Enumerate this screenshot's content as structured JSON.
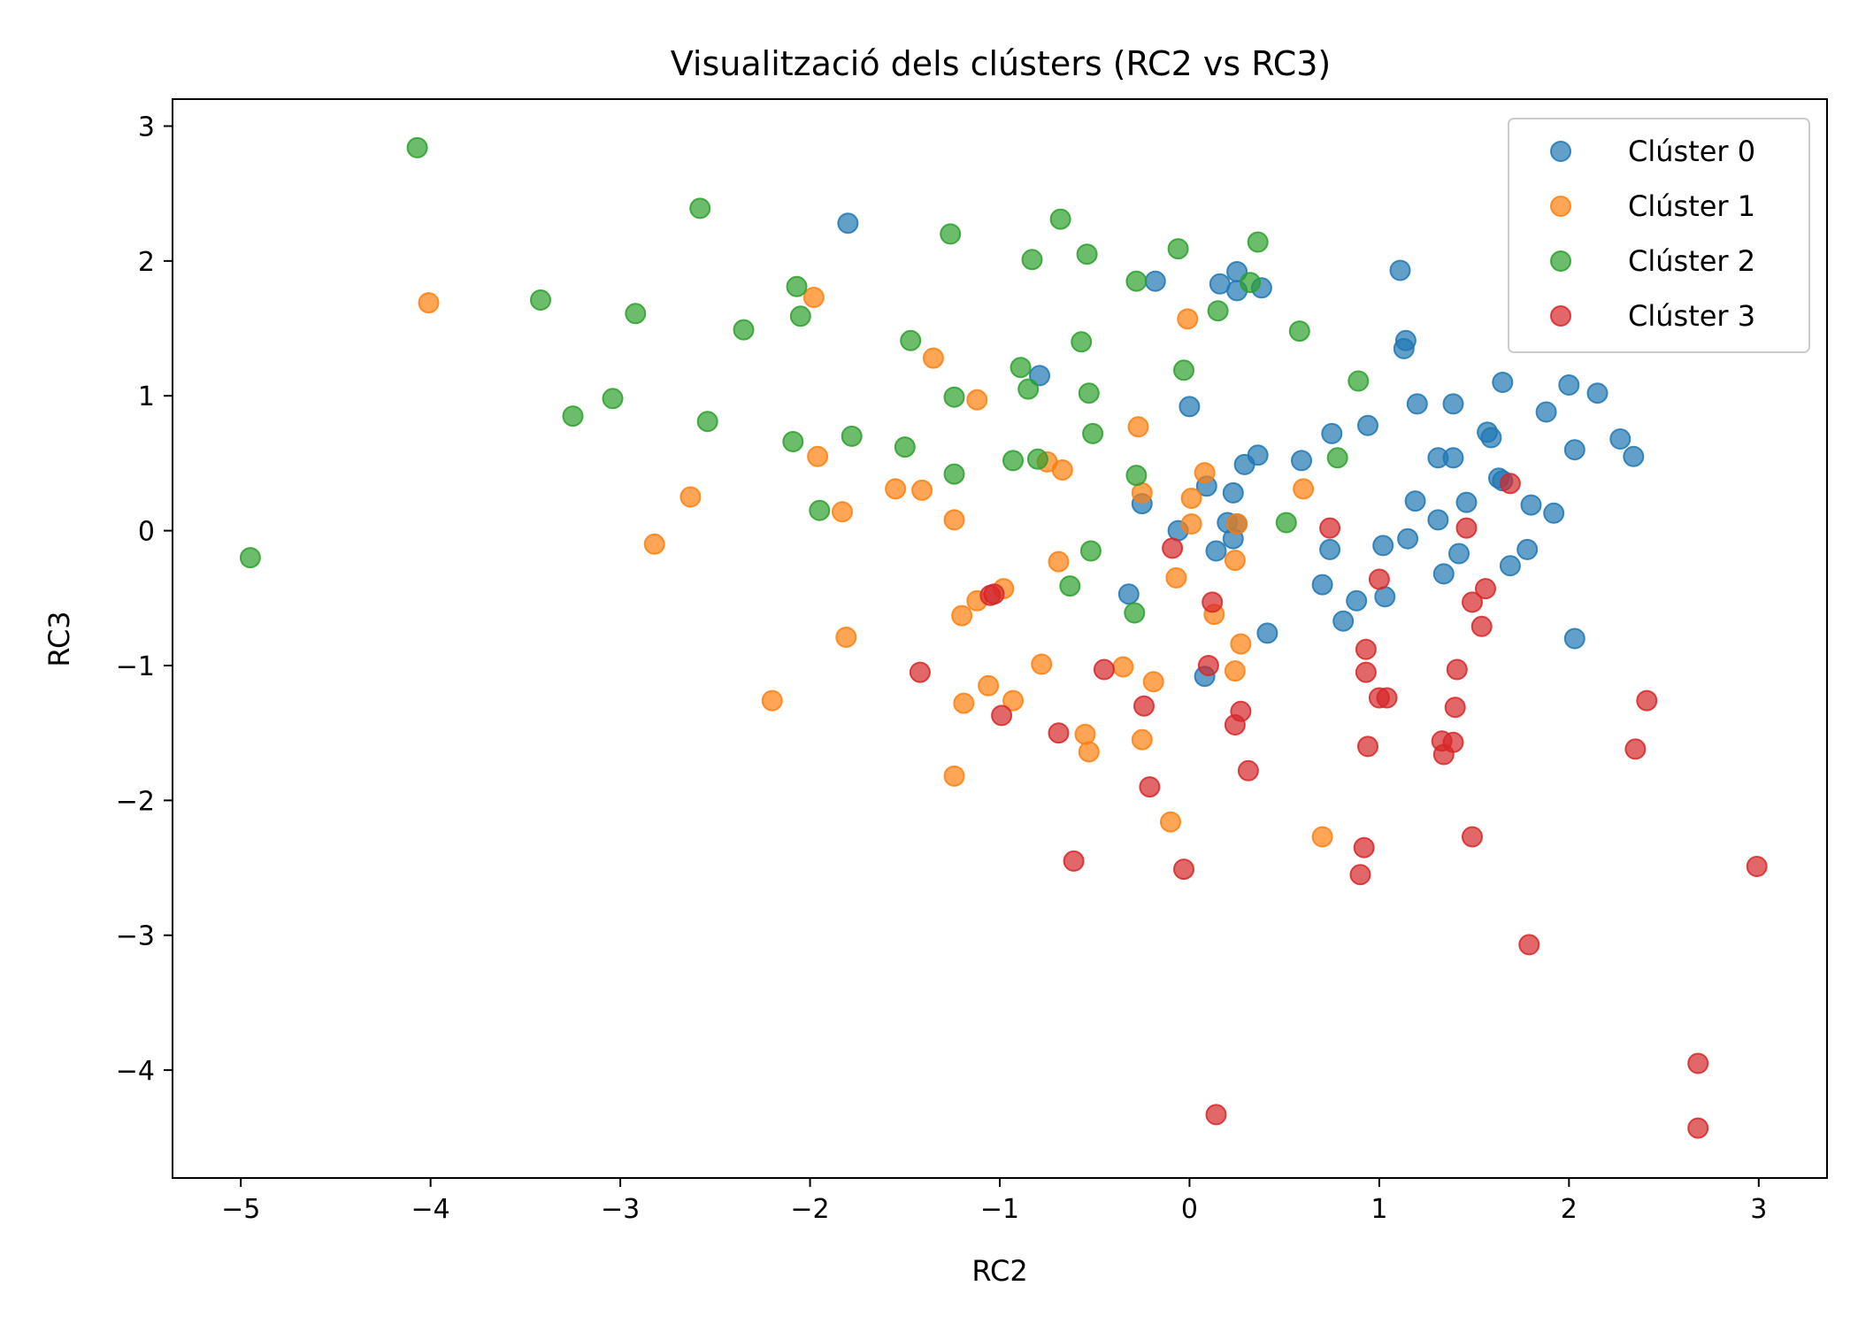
{
  "chart_data": {
    "type": "scatter",
    "title": "Visualització dels clústers (RC2 vs RC3)",
    "xlabel": "RC2",
    "ylabel": "RC3",
    "xlim": [
      -5.36,
      3.36
    ],
    "ylim": [
      -4.8,
      3.2
    ],
    "xticks": [
      -5,
      -4,
      -3,
      -2,
      -1,
      0,
      1,
      2,
      3
    ],
    "xtick_labels": [
      "−5",
      "−4",
      "−3",
      "−2",
      "−1",
      "0",
      "1",
      "2",
      "3"
    ],
    "yticks": [
      3,
      2,
      1,
      0,
      -1,
      -2,
      -3,
      -4
    ],
    "ytick_labels": [
      "3",
      "2",
      "1",
      "0",
      "−1",
      "−2",
      "−3",
      "−4"
    ],
    "grid": false,
    "legend_position": "top-right",
    "series": [
      {
        "name": "Clúster 0",
        "color": "#1f77b4",
        "points": [
          [
            -1.8,
            2.28
          ],
          [
            -0.18,
            1.85
          ],
          [
            0.16,
            1.83
          ],
          [
            0.25,
            1.92
          ],
          [
            0.25,
            1.78
          ],
          [
            0.38,
            1.8
          ],
          [
            1.11,
            1.93
          ],
          [
            1.14,
            1.41
          ],
          [
            1.13,
            1.35
          ],
          [
            -0.79,
            1.15
          ],
          [
            0.0,
            0.92
          ],
          [
            1.2,
            0.94
          ],
          [
            1.39,
            0.94
          ],
          [
            1.65,
            1.1
          ],
          [
            2.0,
            1.08
          ],
          [
            2.15,
            1.02
          ],
          [
            1.88,
            0.88
          ],
          [
            1.57,
            0.73
          ],
          [
            1.59,
            0.69
          ],
          [
            2.27,
            0.68
          ],
          [
            2.34,
            0.55
          ],
          [
            2.03,
            0.6
          ],
          [
            0.94,
            0.78
          ],
          [
            0.75,
            0.72
          ],
          [
            1.31,
            0.54
          ],
          [
            1.39,
            0.54
          ],
          [
            0.36,
            0.56
          ],
          [
            0.29,
            0.49
          ],
          [
            0.59,
            0.52
          ],
          [
            0.09,
            0.33
          ],
          [
            0.23,
            0.28
          ],
          [
            1.63,
            0.39
          ],
          [
            1.65,
            0.37
          ],
          [
            1.19,
            0.22
          ],
          [
            1.46,
            0.21
          ],
          [
            1.8,
            0.19
          ],
          [
            1.92,
            0.13
          ],
          [
            1.31,
            0.08
          ],
          [
            -0.25,
            0.2
          ],
          [
            0.2,
            0.06
          ],
          [
            0.25,
            0.05
          ],
          [
            -0.06,
            0.0
          ],
          [
            0.23,
            -0.06
          ],
          [
            1.15,
            -0.06
          ],
          [
            1.02,
            -0.11
          ],
          [
            0.74,
            -0.14
          ],
          [
            0.14,
            -0.15
          ],
          [
            1.42,
            -0.17
          ],
          [
            1.78,
            -0.14
          ],
          [
            1.69,
            -0.26
          ],
          [
            1.34,
            -0.32
          ],
          [
            0.7,
            -0.4
          ],
          [
            0.88,
            -0.52
          ],
          [
            1.03,
            -0.49
          ],
          [
            -0.32,
            -0.47
          ],
          [
            0.81,
            -0.67
          ],
          [
            0.41,
            -0.76
          ],
          [
            2.03,
            -0.8
          ],
          [
            0.08,
            -1.08
          ]
        ]
      },
      {
        "name": "Clúster 1",
        "color": "#ff7f0e",
        "points": [
          [
            -4.01,
            1.69
          ],
          [
            -1.98,
            1.73
          ],
          [
            -0.01,
            1.57
          ],
          [
            -1.35,
            1.28
          ],
          [
            -1.12,
            0.97
          ],
          [
            -1.96,
            0.55
          ],
          [
            -0.27,
            0.77
          ],
          [
            -0.75,
            0.51
          ],
          [
            -0.67,
            0.45
          ],
          [
            0.08,
            0.43
          ],
          [
            0.6,
            0.31
          ],
          [
            -1.55,
            0.31
          ],
          [
            -1.41,
            0.3
          ],
          [
            -2.63,
            0.25
          ],
          [
            -0.25,
            0.28
          ],
          [
            0.01,
            0.24
          ],
          [
            -1.83,
            0.14
          ],
          [
            -1.24,
            0.08
          ],
          [
            0.01,
            0.05
          ],
          [
            0.25,
            0.05
          ],
          [
            -2.82,
            -0.1
          ],
          [
            -0.69,
            -0.23
          ],
          [
            0.24,
            -0.22
          ],
          [
            -0.07,
            -0.35
          ],
          [
            -0.98,
            -0.43
          ],
          [
            -1.12,
            -0.52
          ],
          [
            -1.2,
            -0.63
          ],
          [
            0.13,
            -0.62
          ],
          [
            -1.81,
            -0.79
          ],
          [
            0.27,
            -0.84
          ],
          [
            -0.78,
            -0.99
          ],
          [
            -0.35,
            -1.01
          ],
          [
            0.24,
            -1.04
          ],
          [
            -0.19,
            -1.12
          ],
          [
            -1.06,
            -1.15
          ],
          [
            -0.93,
            -1.26
          ],
          [
            -2.2,
            -1.26
          ],
          [
            -1.19,
            -1.28
          ],
          [
            -0.55,
            -1.51
          ],
          [
            -0.25,
            -1.55
          ],
          [
            -0.53,
            -1.64
          ],
          [
            -1.24,
            -1.82
          ],
          [
            -0.1,
            -2.16
          ],
          [
            0.7,
            -2.27
          ]
        ]
      },
      {
        "name": "Clúster 2",
        "color": "#2ca02c",
        "points": [
          [
            -4.07,
            2.84
          ],
          [
            -2.58,
            2.39
          ],
          [
            -0.68,
            2.31
          ],
          [
            -1.26,
            2.2
          ],
          [
            0.36,
            2.14
          ],
          [
            -0.06,
            2.09
          ],
          [
            -0.54,
            2.05
          ],
          [
            -0.83,
            2.01
          ],
          [
            -0.28,
            1.85
          ],
          [
            0.32,
            1.84
          ],
          [
            -2.07,
            1.81
          ],
          [
            -3.42,
            1.71
          ],
          [
            -2.92,
            1.61
          ],
          [
            -2.05,
            1.59
          ],
          [
            0.15,
            1.63
          ],
          [
            -2.35,
            1.49
          ],
          [
            0.58,
            1.48
          ],
          [
            -1.47,
            1.41
          ],
          [
            -0.57,
            1.4
          ],
          [
            -0.89,
            1.21
          ],
          [
            -0.03,
            1.19
          ],
          [
            0.89,
            1.11
          ],
          [
            -0.85,
            1.05
          ],
          [
            -0.53,
            1.02
          ],
          [
            -1.24,
            0.99
          ],
          [
            -3.04,
            0.98
          ],
          [
            -3.25,
            0.85
          ],
          [
            -2.54,
            0.81
          ],
          [
            -0.51,
            0.72
          ],
          [
            -1.78,
            0.7
          ],
          [
            -2.09,
            0.66
          ],
          [
            -1.5,
            0.62
          ],
          [
            -0.93,
            0.52
          ],
          [
            -0.8,
            0.53
          ],
          [
            0.78,
            0.54
          ],
          [
            -1.24,
            0.42
          ],
          [
            -0.28,
            0.41
          ],
          [
            -1.95,
            0.15
          ],
          [
            0.51,
            0.06
          ],
          [
            -0.52,
            -0.15
          ],
          [
            -4.95,
            -0.2
          ],
          [
            -0.63,
            -0.41
          ],
          [
            -0.29,
            -0.61
          ]
        ]
      },
      {
        "name": "Clúster 3",
        "color": "#d62728",
        "points": [
          [
            1.69,
            0.35
          ],
          [
            0.74,
            0.02
          ],
          [
            1.46,
            0.02
          ],
          [
            -0.09,
            -0.13
          ],
          [
            1.0,
            -0.36
          ],
          [
            1.56,
            -0.43
          ],
          [
            -1.05,
            -0.48
          ],
          [
            -1.03,
            -0.47
          ],
          [
            1.49,
            -0.53
          ],
          [
            0.12,
            -0.53
          ],
          [
            1.54,
            -0.71
          ],
          [
            0.93,
            -0.88
          ],
          [
            0.1,
            -1.0
          ],
          [
            -0.45,
            -1.03
          ],
          [
            -1.42,
            -1.05
          ],
          [
            0.93,
            -1.05
          ],
          [
            1.41,
            -1.03
          ],
          [
            1.0,
            -1.24
          ],
          [
            1.04,
            -1.24
          ],
          [
            -0.24,
            -1.3
          ],
          [
            0.27,
            -1.34
          ],
          [
            1.4,
            -1.31
          ],
          [
            2.41,
            -1.26
          ],
          [
            -0.99,
            -1.37
          ],
          [
            0.24,
            -1.44
          ],
          [
            -0.69,
            -1.5
          ],
          [
            1.33,
            -1.56
          ],
          [
            1.39,
            -1.57
          ],
          [
            0.94,
            -1.6
          ],
          [
            2.35,
            -1.62
          ],
          [
            1.34,
            -1.66
          ],
          [
            0.31,
            -1.78
          ],
          [
            -0.21,
            -1.9
          ],
          [
            1.49,
            -2.27
          ],
          [
            0.92,
            -2.35
          ],
          [
            -0.61,
            -2.45
          ],
          [
            -0.03,
            -2.51
          ],
          [
            0.9,
            -2.55
          ],
          [
            2.99,
            -2.49
          ],
          [
            1.79,
            -3.07
          ],
          [
            2.68,
            -3.95
          ],
          [
            2.68,
            -4.43
          ],
          [
            0.14,
            -4.33
          ]
        ]
      }
    ]
  }
}
